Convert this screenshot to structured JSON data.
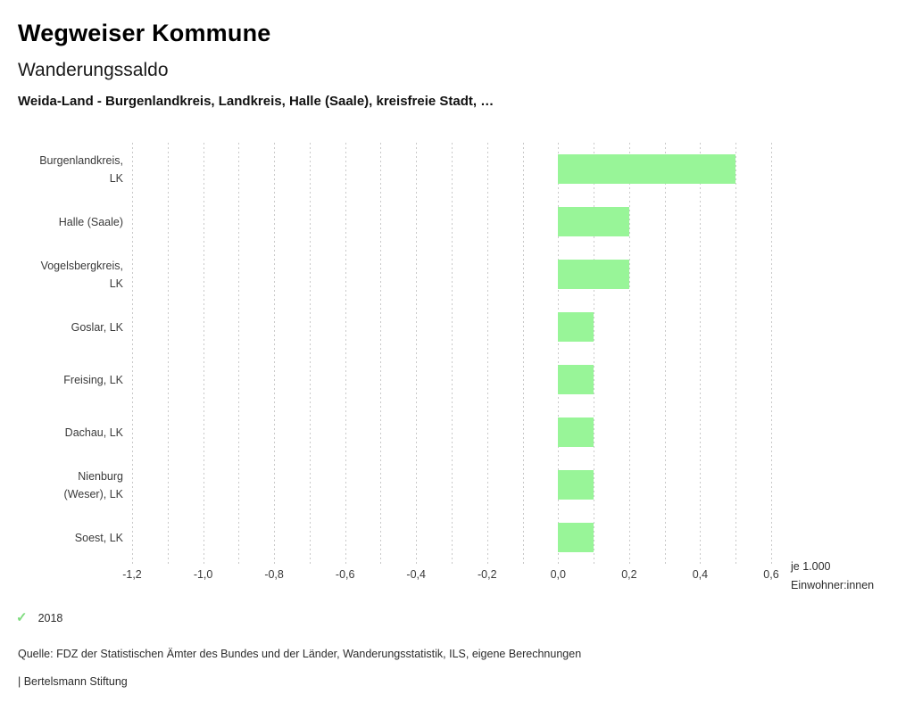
{
  "header": {
    "app_title": "Wegweiser Kommune",
    "chart_title": "Wanderungssaldo",
    "subtitle": "Weida-Land - Burgenlandkreis, Landkreis, Halle (Saale), kreisfreie Stadt, …"
  },
  "chart_data": {
    "type": "bar",
    "orientation": "horizontal",
    "title": "Wanderungssaldo",
    "categories": [
      "Burgenlandkreis, LK",
      "Halle (Saale)",
      "Vogelsbergkreis, LK",
      "Goslar, LK",
      "Freising, LK",
      "Dachau, LK",
      "Nienburg (Weser), LK",
      "Soest, LK"
    ],
    "series": [
      {
        "name": "2018",
        "values": [
          0.5,
          0.2,
          0.2,
          0.1,
          0.1,
          0.1,
          0.1,
          0.1
        ]
      }
    ],
    "xlim": [
      -1.2,
      0.6
    ],
    "grid_step": 0.1,
    "grid": true,
    "x_ticks": [
      {
        "v": -1.2,
        "label": "-1,2"
      },
      {
        "v": -1.0,
        "label": "-1,0"
      },
      {
        "v": -0.8,
        "label": "-0,8"
      },
      {
        "v": -0.6,
        "label": "-0,6"
      },
      {
        "v": -0.4,
        "label": "-0,4"
      },
      {
        "v": -0.2,
        "label": "-0,2"
      },
      {
        "v": 0.0,
        "label": "0,0"
      },
      {
        "v": 0.2,
        "label": "0,2"
      },
      {
        "v": 0.4,
        "label": "0,4"
      },
      {
        "v": 0.6,
        "label": "0,6"
      }
    ],
    "xlabel_lines": [
      "je 1.000",
      "Einwohner:innen"
    ],
    "bar_color": "#98f598",
    "legend_position": "bottom-left"
  },
  "legend": {
    "check_icon": "✓",
    "check_color": "#7edc7e",
    "item_label": "2018"
  },
  "footer": {
    "source_line": "Quelle: FDZ der Statistischen Ämter des Bundes und der Länder, Wanderungsstatistik, ILS, eigene Berechnungen",
    "brand_line": "| Bertelsmann Stiftung"
  }
}
